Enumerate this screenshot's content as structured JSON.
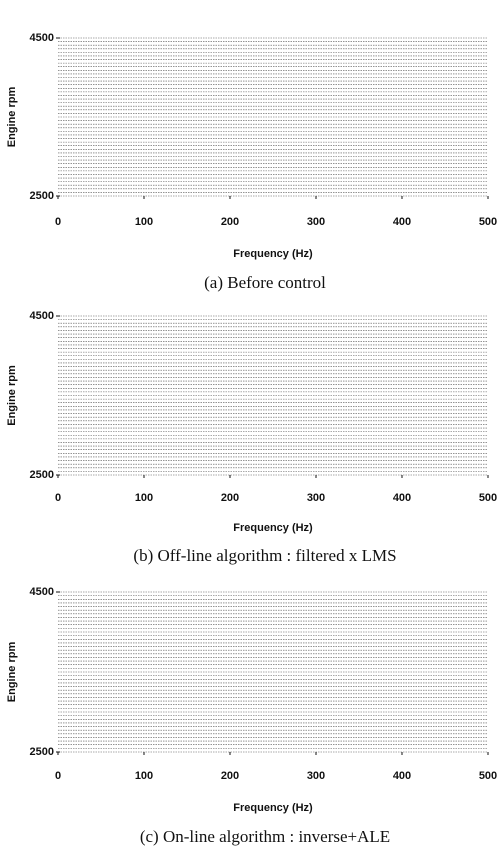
{
  "chart_data": [
    {
      "type": "waterfall",
      "xlabel": "Frequency (Hz)",
      "ylabel": "Engine rpm",
      "caption": "(a) Before control",
      "xlim": [
        0,
        500
      ],
      "xticks": [
        0,
        100,
        200,
        300,
        400,
        500
      ],
      "ylim": [
        2500,
        4500
      ],
      "yticks": [
        2500,
        4500
      ]
    },
    {
      "type": "waterfall",
      "xlabel": "Frequency (Hz)",
      "ylabel": "Engine rpm",
      "caption": "(b) Off-line algorithm : filtered x LMS",
      "xlim": [
        0,
        500
      ],
      "xticks": [
        0,
        100,
        200,
        300,
        400,
        500
      ],
      "ylim": [
        2500,
        4500
      ],
      "yticks": [
        2500,
        4500
      ]
    },
    {
      "type": "waterfall",
      "xlabel": "Frequency (Hz)",
      "ylabel": "Engine rpm",
      "caption": "(c) On-line algorithm : inverse+ALE",
      "xlim": [
        0,
        500
      ],
      "xticks": [
        0,
        100,
        200,
        300,
        400,
        500
      ],
      "ylim": [
        2500,
        4500
      ],
      "yticks": [
        2500,
        4500
      ]
    }
  ]
}
